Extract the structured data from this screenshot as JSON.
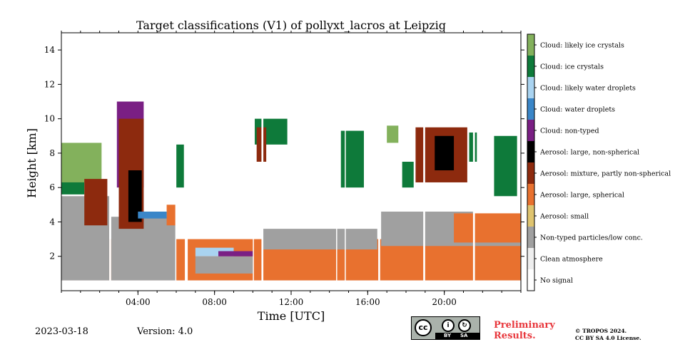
{
  "chart_data": {
    "type": "heatmap",
    "title": "Target classifications (V1) of pollyxt_lacros at Leipzig",
    "xlabel": "Time [UTC]",
    "ylabel": "Height [km]",
    "xlim": [
      0,
      24
    ],
    "ylim": [
      0,
      15
    ],
    "x_ticks": [
      4,
      8,
      12,
      16,
      20
    ],
    "x_tick_labels": [
      "04:00",
      "08:00",
      "12:00",
      "16:00",
      "20:00"
    ],
    "y_ticks": [
      2,
      4,
      6,
      8,
      10,
      12,
      14
    ],
    "y_tick_labels": [
      "2",
      "4",
      "6",
      "8",
      "10",
      "12",
      "14"
    ],
    "legend_placement": "right colorbar",
    "classes": [
      {
        "label": "No signal",
        "color": "#ffffff"
      },
      {
        "label": "Clean atmosphere",
        "color": "#eeeeee"
      },
      {
        "label": "Non-typed particles/low conc.",
        "color": "#a0a0a0"
      },
      {
        "label": "Aerosol: small",
        "color": "#dfc46f"
      },
      {
        "label": "Aerosol: large, spherical",
        "color": "#e8712f"
      },
      {
        "label": "Aerosol: mixture, partly non-spherical",
        "color": "#8d2a0e"
      },
      {
        "label": "Aerosol: large, non-spherical",
        "color": "#000000"
      },
      {
        "label": "Cloud: non-typed",
        "color": "#7a1f84"
      },
      {
        "label": "Cloud: water droplets",
        "color": "#3a86c8"
      },
      {
        "label": "Cloud: likely water droplets",
        "color": "#a9d3f0"
      },
      {
        "label": "Cloud: ice crystals",
        "color": "#0e7a3a"
      },
      {
        "label": "Cloud: likely ice crystals",
        "color": "#83b15c"
      }
    ],
    "gaps_hours": [
      [
        2.5,
        2.6
      ],
      [
        5.95,
        6.0
      ],
      [
        6.45,
        6.6
      ],
      [
        10.0,
        10.05
      ],
      [
        10.45,
        10.55
      ],
      [
        14.35,
        14.4
      ],
      [
        14.8,
        14.85
      ],
      [
        16.55,
        16.65
      ],
      [
        18.9,
        19.0
      ],
      [
        21.5,
        21.6
      ]
    ],
    "regions": [
      {
        "cls": 4,
        "t": [
          0,
          24
        ],
        "h": [
          0.6,
          3.0
        ],
        "note": "boundary layer orange band"
      },
      {
        "cls": 2,
        "t": [
          0,
          2.5
        ],
        "h": [
          0.6,
          5.5
        ]
      },
      {
        "cls": 2,
        "t": [
          2.6,
          6.0
        ],
        "h": [
          0.6,
          4.3
        ]
      },
      {
        "cls": 2,
        "t": [
          7.0,
          10.0
        ],
        "h": [
          1.0,
          2.0
        ]
      },
      {
        "cls": 2,
        "t": [
          10.5,
          16.5
        ],
        "h": [
          2.4,
          3.6
        ]
      },
      {
        "cls": 2,
        "t": [
          16.7,
          21.5
        ],
        "h": [
          2.6,
          4.6
        ]
      },
      {
        "cls": 2,
        "t": [
          21.6,
          24
        ],
        "h": [
          2.6,
          4.0
        ]
      },
      {
        "cls": 10,
        "t": [
          0.0,
          1.2
        ],
        "h": [
          5.6,
          8.5
        ]
      },
      {
        "cls": 11,
        "t": [
          0.0,
          2.1
        ],
        "h": [
          6.3,
          8.6
        ]
      },
      {
        "cls": 5,
        "t": [
          1.2,
          2.4
        ],
        "h": [
          3.8,
          6.5
        ]
      },
      {
        "cls": 7,
        "t": [
          2.9,
          4.3
        ],
        "h": [
          6.0,
          11.0
        ]
      },
      {
        "cls": 5,
        "t": [
          3.0,
          4.3
        ],
        "h": [
          3.6,
          10.0
        ]
      },
      {
        "cls": 6,
        "t": [
          3.5,
          4.2
        ],
        "h": [
          4.0,
          7.0
        ]
      },
      {
        "cls": 10,
        "t": [
          6.0,
          6.4
        ],
        "h": [
          6.0,
          8.5
        ]
      },
      {
        "cls": 10,
        "t": [
          10.1,
          11.8
        ],
        "h": [
          8.5,
          10.0
        ]
      },
      {
        "cls": 5,
        "t": [
          10.2,
          10.7
        ],
        "h": [
          7.5,
          9.5
        ]
      },
      {
        "cls": 10,
        "t": [
          14.6,
          15.8
        ],
        "h": [
          6.0,
          9.3
        ]
      },
      {
        "cls": 11,
        "t": [
          17.0,
          17.6
        ],
        "h": [
          8.6,
          9.6
        ]
      },
      {
        "cls": 10,
        "t": [
          17.8,
          18.4
        ],
        "h": [
          6.0,
          7.5
        ]
      },
      {
        "cls": 5,
        "t": [
          18.5,
          21.2
        ],
        "h": [
          6.3,
          9.5
        ]
      },
      {
        "cls": 6,
        "t": [
          19.5,
          20.5
        ],
        "h": [
          7.0,
          9.0
        ]
      },
      {
        "cls": 10,
        "t": [
          21.3,
          21.7
        ],
        "h": [
          7.5,
          9.2
        ]
      },
      {
        "cls": 10,
        "t": [
          22.6,
          23.8
        ],
        "h": [
          5.5,
          9.0
        ]
      },
      {
        "cls": 4,
        "t": [
          20.5,
          24
        ],
        "h": [
          2.8,
          4.5
        ]
      },
      {
        "cls": 4,
        "t": [
          5.5,
          6.0
        ],
        "h": [
          3.8,
          5.0
        ]
      },
      {
        "cls": 8,
        "t": [
          4.0,
          5.5
        ],
        "h": [
          4.2,
          4.6
        ]
      },
      {
        "cls": 9,
        "t": [
          7.0,
          9.0
        ],
        "h": [
          2.0,
          2.5
        ]
      },
      {
        "cls": 7,
        "t": [
          8.2,
          10.0
        ],
        "h": [
          2.0,
          2.3
        ]
      }
    ]
  },
  "footer": {
    "date": "2023-03-18",
    "version": "Version: 4.0",
    "preliminary_line1": "Preliminary",
    "preliminary_line2": "Results.",
    "copyright_line1": "© TROPOS 2024.",
    "copyright_line2": "CC BY SA 4.0 License."
  },
  "license_badge": {
    "cc": "cc",
    "by": "BY",
    "sa": "SA"
  }
}
